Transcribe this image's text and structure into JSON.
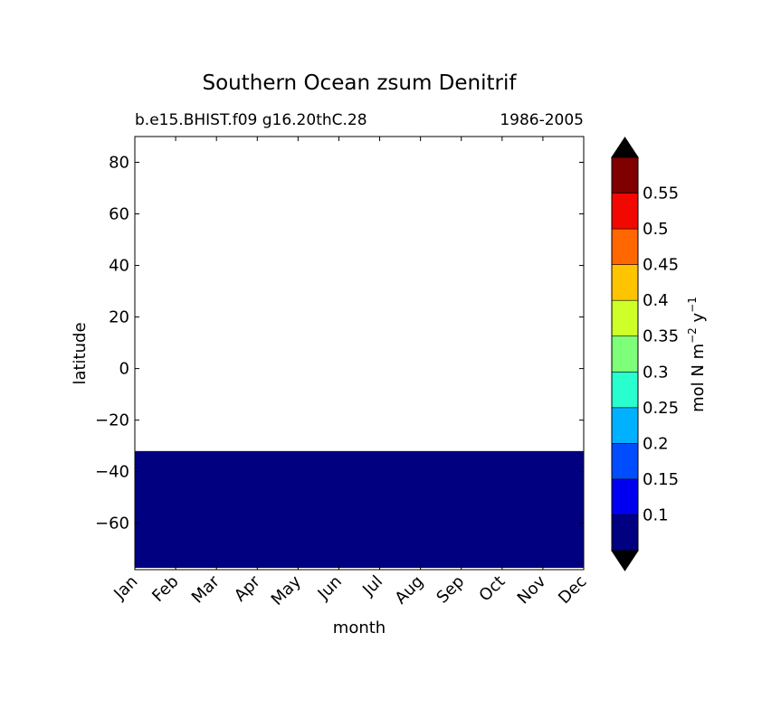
{
  "chart_data": {
    "type": "heatmap",
    "title": "Southern Ocean zsum Denitrif",
    "subtitle_left": "b.e15.BHIST.f09 g16.20thC.28",
    "subtitle_right": "1986-2005",
    "xlabel": "month",
    "ylabel": "latitude",
    "x_ticks": [
      "Jan",
      "Feb",
      "Mar",
      "Apr",
      "May",
      "Jun",
      "Jul",
      "Aug",
      "Sep",
      "Oct",
      "Nov",
      "Dec"
    ],
    "y_ticks": [
      80,
      60,
      40,
      20,
      0,
      -20,
      -40,
      -60
    ],
    "y_tick_labels": [
      "80",
      "60",
      "40",
      "20",
      "0",
      "−20",
      "−40",
      "−60"
    ],
    "ylim": [
      -78,
      90
    ],
    "xlim": [
      "Jan",
      "Dec"
    ],
    "filled_region": {
      "lat_min": -78,
      "lat_max": -32,
      "month_start": "Jan",
      "month_end": "Dec",
      "value_range": [
        0.05,
        0.1
      ],
      "color": "#000080"
    },
    "colorbar": {
      "label": "mol N m⁻² y⁻¹",
      "levels": [
        0.05,
        0.1,
        0.15,
        0.2,
        0.25,
        0.3,
        0.35,
        0.4,
        0.45,
        0.5,
        0.55,
        0.6
      ],
      "tick_labels": [
        "0.1",
        "0.15",
        "0.2",
        "0.25",
        "0.3",
        "0.35",
        "0.4",
        "0.45",
        "0.5",
        "0.55"
      ],
      "colors": [
        "#000080",
        "#0000f1",
        "#004dff",
        "#00b1ff",
        "#29ffce",
        "#7dff7a",
        "#ceff29",
        "#ffc400",
        "#ff6800",
        "#f10800",
        "#800000"
      ],
      "extend": "both",
      "extend_color": "#000000"
    }
  }
}
